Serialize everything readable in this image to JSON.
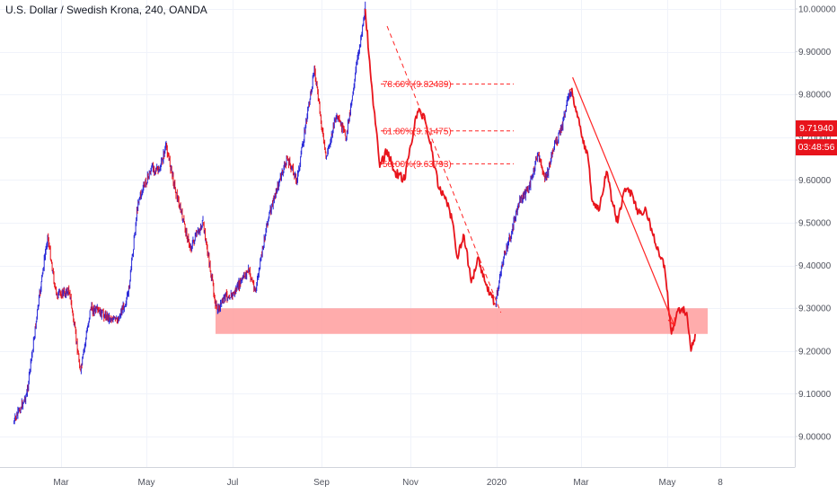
{
  "title": "U.S. Dollar / Swedish Krona, 240, OANDA",
  "colors": {
    "bull": "#2a2ad8",
    "bear": "#e8141c",
    "annotation": "#ff2424",
    "zone": "#ff9e9e",
    "grid": "#f0f3fa",
    "badge": "#e8141c",
    "axis_text": "#50535e"
  },
  "price_badge": {
    "price": "9.71940",
    "countdown": "03:48:56"
  },
  "chart_data": {
    "type": "line",
    "subtype": "price-ohlc",
    "symbol": "USD/SEK",
    "interval": "240",
    "broker": "OANDA",
    "x_ticks": [
      "Mar",
      "May",
      "Jul",
      "Sep",
      "Nov",
      "2020",
      "Mar",
      "May",
      "8"
    ],
    "y_ticks": [
      "9.00000",
      "9.10000",
      "9.20000",
      "9.30000",
      "9.40000",
      "9.50000",
      "9.60000",
      "9.70000",
      "9.80000",
      "9.90000",
      "10.00000"
    ],
    "ylim": [
      8.93,
      10.02
    ],
    "grid": true,
    "last_price": 9.7194,
    "series": [
      {
        "color": "mixed",
        "points": [
          [
            "2019-01-21",
            9.03
          ],
          [
            "2019-02-01",
            9.1
          ],
          [
            "2019-02-10",
            9.3
          ],
          [
            "2019-02-18",
            9.47
          ],
          [
            "2019-02-25",
            9.33
          ],
          [
            "2019-03-07",
            9.34
          ],
          [
            "2019-03-15",
            9.15
          ],
          [
            "2019-03-22",
            9.3
          ],
          [
            "2019-04-10",
            9.27
          ],
          [
            "2019-04-18",
            9.33
          ],
          [
            "2019-04-25",
            9.55
          ],
          [
            "2019-05-05",
            9.63
          ],
          [
            "2019-05-10",
            9.62
          ],
          [
            "2019-05-15",
            9.68
          ],
          [
            "2019-05-22",
            9.57
          ],
          [
            "2019-06-01",
            9.44
          ],
          [
            "2019-06-10",
            9.5
          ],
          [
            "2019-06-20",
            9.29
          ],
          [
            "2019-06-26",
            9.33
          ],
          [
            "2019-07-01",
            9.33
          ],
          [
            "2019-07-12",
            9.39
          ],
          [
            "2019-07-17",
            9.34
          ],
          [
            "2019-07-25",
            9.5
          ],
          [
            "2019-08-01",
            9.58
          ],
          [
            "2019-08-08",
            9.65
          ],
          [
            "2019-08-15",
            9.6
          ],
          [
            "2019-08-27",
            9.86
          ],
          [
            "2019-09-04",
            9.65
          ],
          [
            "2019-09-11",
            9.75
          ],
          [
            "2019-09-18",
            9.7
          ],
          [
            "2019-09-26",
            9.89
          ],
          [
            "2019-10-01",
            10.0
          ]
        ]
      },
      {
        "color": "#e8141c",
        "points": [
          [
            "2019-10-01",
            10.0
          ],
          [
            "2019-10-06",
            9.8
          ],
          [
            "2019-10-11",
            9.63
          ],
          [
            "2019-10-16",
            9.67
          ],
          [
            "2019-10-21",
            9.62
          ],
          [
            "2019-10-28",
            9.6
          ],
          [
            "2019-11-01",
            9.68
          ],
          [
            "2019-11-06",
            9.76
          ],
          [
            "2019-11-11",
            9.75
          ],
          [
            "2019-11-16",
            9.67
          ],
          [
            "2019-11-21",
            9.58
          ],
          [
            "2019-11-26",
            9.56
          ],
          [
            "2019-12-01",
            9.5
          ],
          [
            "2019-12-04",
            9.42
          ],
          [
            "2019-12-09",
            9.47
          ],
          [
            "2019-12-14",
            9.36
          ],
          [
            "2019-12-19",
            9.42
          ],
          [
            "2019-12-24",
            9.36
          ],
          [
            "2019-12-31",
            9.31
          ]
        ]
      },
      {
        "color": "mixed",
        "points": [
          [
            "2019-12-31",
            9.31
          ],
          [
            "2020-01-06",
            9.42
          ],
          [
            "2020-01-12",
            9.48
          ],
          [
            "2020-01-17",
            9.55
          ],
          [
            "2020-01-24",
            9.58
          ],
          [
            "2020-01-30",
            9.66
          ],
          [
            "2020-02-05",
            9.6
          ],
          [
            "2020-02-10",
            9.67
          ],
          [
            "2020-02-16",
            9.72
          ],
          [
            "2020-02-21",
            9.79
          ],
          [
            "2020-02-23",
            9.81
          ]
        ]
      },
      {
        "color": "#e8141c",
        "points": [
          [
            "2020-02-23",
            9.81
          ],
          [
            "2020-02-27",
            9.76
          ],
          [
            "2020-03-02",
            9.7
          ],
          [
            "2020-03-06",
            9.65
          ],
          [
            "2020-03-09",
            9.55
          ],
          [
            "2020-03-14",
            9.53
          ],
          [
            "2020-03-19",
            9.62
          ],
          [
            "2020-03-23",
            9.55
          ],
          [
            "2020-03-27",
            9.5
          ],
          [
            "2020-04-01",
            9.58
          ],
          [
            "2020-04-06",
            9.57
          ],
          [
            "2020-04-10",
            9.52
          ],
          [
            "2020-04-16",
            9.53
          ],
          [
            "2020-04-21",
            9.47
          ],
          [
            "2020-04-26",
            9.42
          ],
          [
            "2020-04-29",
            9.4
          ],
          [
            "2020-05-04",
            9.24
          ],
          [
            "2020-05-09",
            9.3
          ],
          [
            "2020-05-15",
            9.29
          ],
          [
            "2020-05-18",
            9.2
          ],
          [
            "2020-05-21",
            9.24
          ]
        ]
      }
    ],
    "annotations": {
      "fib_levels": [
        {
          "label": "78.60%(9.82439)",
          "value": 9.82439
        },
        {
          "label": "61.80%(9.71475)",
          "value": 9.71475
        },
        {
          "label": "50.00%(9.63793)",
          "value": 9.63793
        }
      ],
      "support_zone": {
        "from": 9.24,
        "to": 9.3
      },
      "trend_lines": [
        {
          "style": "dashed",
          "from": [
            "2019-10-16",
            9.96
          ],
          "to": [
            "2020-01-04",
            9.29
          ]
        },
        {
          "style": "arrow",
          "from": [
            "2020-02-24",
            9.84
          ],
          "to": [
            "2020-05-06",
            9.26
          ]
        }
      ]
    }
  }
}
